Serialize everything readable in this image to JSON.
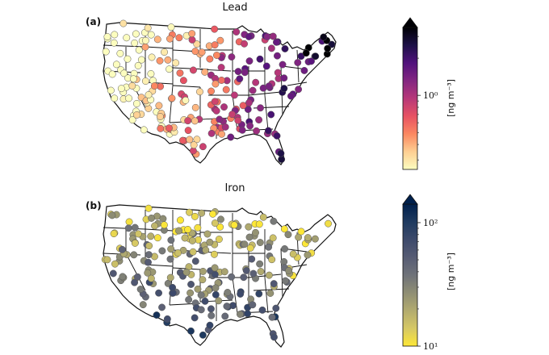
{
  "panels": [
    {
      "letter": "(a)",
      "title": "Lead",
      "colorbar": {
        "label": "[ng m⁻³]",
        "scale": "log",
        "extend": "max",
        "colormap": [
          "#fcfdbf",
          "#fecf92",
          "#fb8861",
          "#e75263",
          "#b73779",
          "#832681",
          "#51127c",
          "#1d1147",
          "#000004"
        ],
        "tick_labels": [
          {
            "value": 1,
            "text": "10⁰"
          }
        ]
      },
      "colormap_name": "magma_r"
    },
    {
      "letter": "(b)",
      "title": "Iron",
      "colorbar": {
        "label": "[ng m⁻³]",
        "scale": "log",
        "extend": "max",
        "colormap": [
          "#fde737",
          "#d6c865",
          "#b2ab6f",
          "#8f8e74",
          "#6f7279",
          "#575c74",
          "#3d4a6b",
          "#1f3a5f",
          "#00204c"
        ],
        "tick_labels": [
          {
            "value": 10,
            "text": "10¹"
          },
          {
            "value": 100,
            "text": "10²"
          }
        ]
      },
      "colormap_name": "cividis_r"
    }
  ]
}
